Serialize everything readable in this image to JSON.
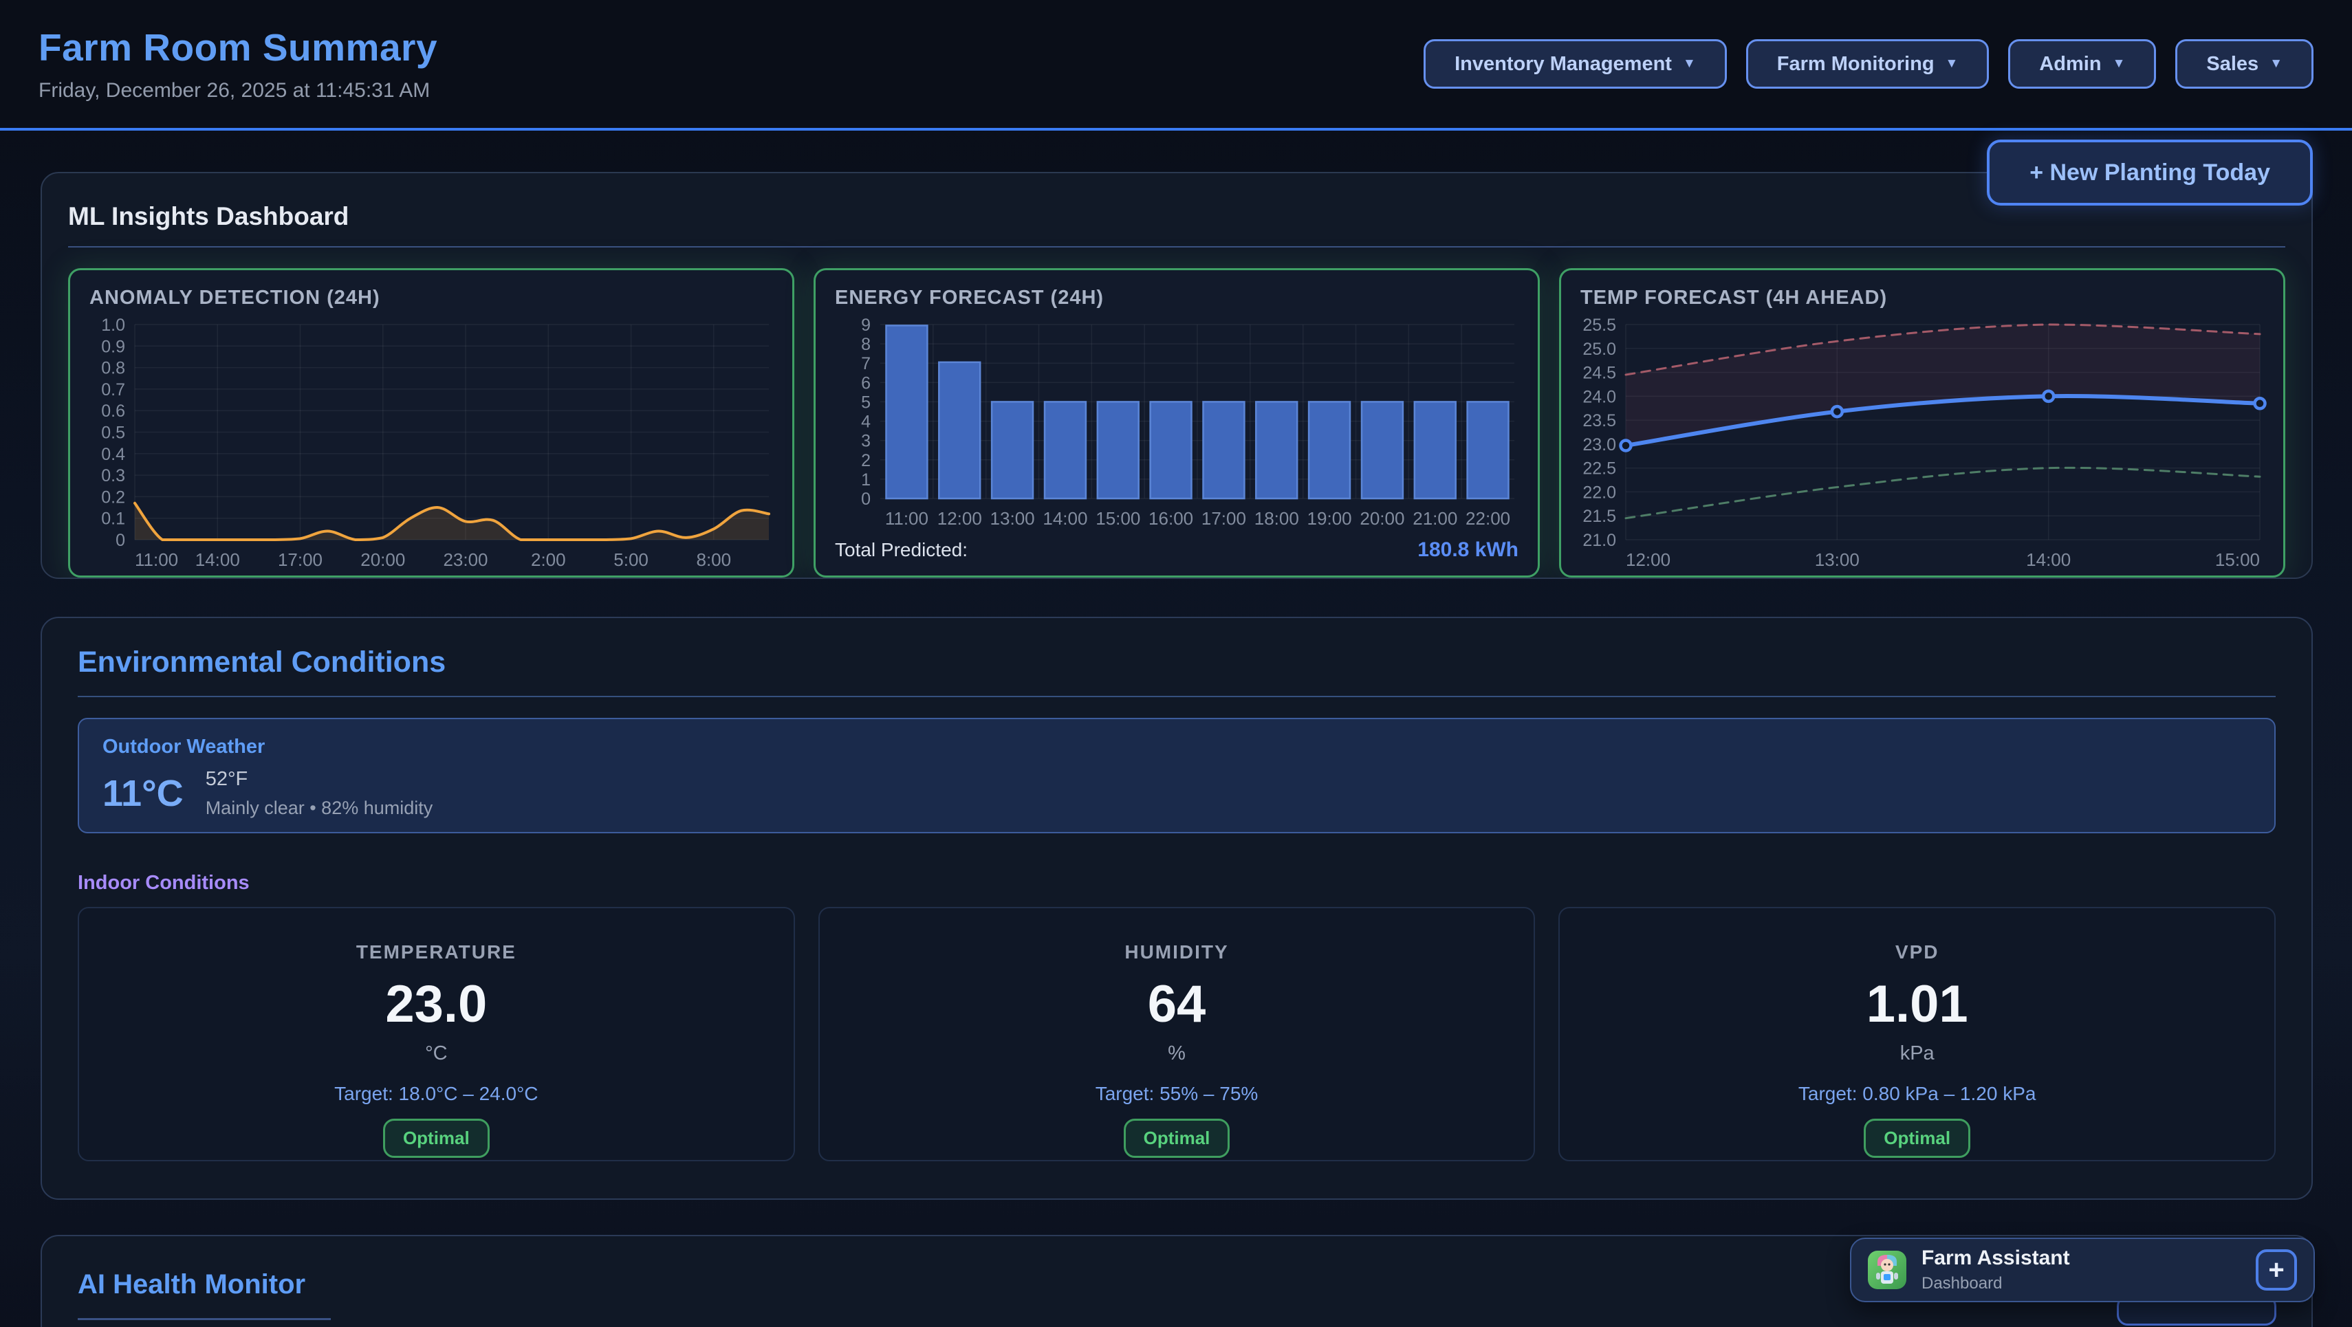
{
  "colors": {
    "accent_blue": "#4f84f4",
    "heading_blue": "#5f9df6",
    "title_blue": "#609df4",
    "indoor_purple": "#a78bfa",
    "optimal_green": "#58d27e",
    "card_border_green": "#3fa065",
    "anomaly_orange": "#f0a43e",
    "bar_blue": "#4a74c8",
    "forecast_blue": "#4e86f0",
    "upper_bound_red": "#a45a68",
    "lower_bound_green": "#4e7d66",
    "total_value_blue": "#5b8df5"
  },
  "header": {
    "title": "Farm Room Summary",
    "datetime": "Friday, December 26, 2025 at 11:45:31 AM",
    "nav": [
      {
        "label": "Inventory Management",
        "caret": "▼"
      },
      {
        "label": "Farm Monitoring",
        "caret": "▼"
      },
      {
        "label": "Admin",
        "caret": "▼"
      },
      {
        "label": "Sales",
        "caret": "▼"
      }
    ]
  },
  "actions": {
    "new_planting": "+ New Planting Today"
  },
  "ml": {
    "heading": "ML Insights Dashboard"
  },
  "chart_data": [
    {
      "id": "anomaly",
      "type": "area",
      "title": "ANOMALY DETECTION (24H)",
      "x": [
        "11:00",
        "12:00",
        "13:00",
        "14:00",
        "15:00",
        "16:00",
        "17:00",
        "18:00",
        "19:00",
        "20:00",
        "21:00",
        "22:00",
        "23:00",
        "0:00",
        "1:00",
        "2:00",
        "3:00",
        "4:00",
        "5:00",
        "6:00",
        "7:00",
        "8:00",
        "9:00",
        "10:00"
      ],
      "tick_every": 3,
      "values": [
        0.17,
        0,
        0,
        0,
        0,
        0,
        0.005,
        0.04,
        0,
        0.01,
        0.1,
        0.15,
        0.085,
        0.09,
        0,
        0,
        0,
        0,
        0.005,
        0.04,
        0.01,
        0.05,
        0.135,
        0.12
      ],
      "ylim": [
        0,
        1.0
      ],
      "ystep": 0.1,
      "yfmt": "dec1z",
      "color": "#f0a43e",
      "fill": "rgba(240,164,62,0.14)",
      "grid": true,
      "legend": "none"
    },
    {
      "id": "energy",
      "type": "bar",
      "title": "ENERGY FORECAST (24H)",
      "categories": [
        "11:00",
        "12:00",
        "13:00",
        "14:00",
        "15:00",
        "16:00",
        "17:00",
        "18:00",
        "19:00",
        "20:00",
        "21:00",
        "22:00"
      ],
      "values": [
        8.95,
        7.05,
        5,
        5,
        5,
        5,
        5,
        5,
        5,
        5,
        5,
        5
      ],
      "ylim": [
        0,
        9
      ],
      "ystep": 1,
      "yfmt": "int",
      "color": "#4068bc",
      "bar_stroke": "#5b85d6",
      "footer_label": "Total Predicted:",
      "footer_value": "180.8 kWh",
      "grid": true,
      "legend": "none"
    },
    {
      "id": "temp",
      "type": "line",
      "title": "TEMP FORECAST (4H AHEAD)",
      "x": [
        "12:00",
        "13:00",
        "14:00",
        "15:00"
      ],
      "tick_every": 1,
      "series": [
        {
          "name": "upper_bound",
          "values": [
            24.45,
            25.15,
            25.5,
            25.3
          ],
          "color": "#a45a68",
          "dash": true,
          "width": 3
        },
        {
          "name": "forecast",
          "values": [
            22.97,
            23.68,
            24.0,
            23.85
          ],
          "color": "#4e86f0",
          "width": 6,
          "markers": true
        },
        {
          "name": "lower_bound",
          "values": [
            21.45,
            22.1,
            22.5,
            22.32
          ],
          "color": "#4e7d66",
          "dash": true,
          "width": 3
        }
      ],
      "band": {
        "upper": 0,
        "lower": 1,
        "fill": "rgba(160,75,95,0.12)"
      },
      "ylim": [
        21.0,
        25.5
      ],
      "ystep": 0.5,
      "yfmt": "dec1",
      "grid": true,
      "legend": "none"
    }
  ],
  "environment": {
    "heading": "Environmental Conditions",
    "outdoor": {
      "title": "Outdoor Weather",
      "temp_c": "11°C",
      "temp_f": "52°F",
      "desc": "Mainly clear • 82% humidity"
    },
    "indoor_heading": "Indoor Conditions",
    "cards": [
      {
        "label": "TEMPERATURE",
        "value": "23.0",
        "unit": "°C",
        "target": "Target: 18.0°C – 24.0°C",
        "status": "Optimal"
      },
      {
        "label": "HUMIDITY",
        "value": "64",
        "unit": "%",
        "target": "Target: 55% – 75%",
        "status": "Optimal"
      },
      {
        "label": "VPD",
        "value": "1.01",
        "unit": "kPa",
        "target": "Target: 0.80 kPa – 1.20 kPa",
        "status": "Optimal"
      }
    ]
  },
  "ai": {
    "heading": "AI Health Monitor"
  },
  "assistant": {
    "name": "Farm Assistant",
    "subtitle": "Dashboard",
    "add_label": "+"
  }
}
